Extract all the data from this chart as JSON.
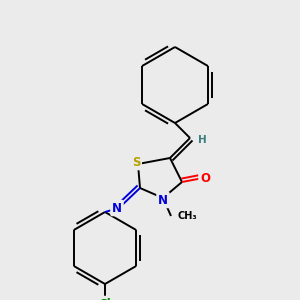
{
  "bg_color": "#ebebeb",
  "atom_colors": {
    "S": "#b8a000",
    "N": "#0000dd",
    "O": "#ff0000",
    "Cl": "#008800",
    "C": "#000000",
    "H": "#3a8080"
  },
  "bond_color": "#000000",
  "bond_lw": 1.4,
  "font_size_atom": 8.5,
  "font_size_H": 7.5,
  "font_size_CH3": 7.0,
  "font_size_Cl": 8.5
}
